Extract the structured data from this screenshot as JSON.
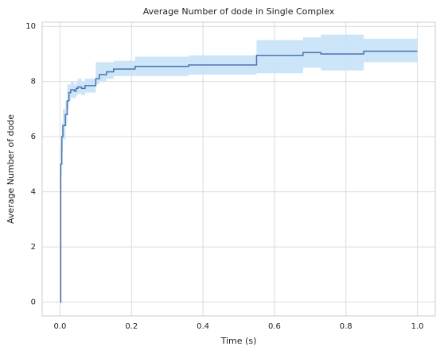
{
  "chart_data": {
    "type": "line",
    "title": "Average Number of dode in Single Complex",
    "x_label": "Time (s)",
    "y_label": "Average Number of dode",
    "x": [
      0,
      0.002,
      0.005,
      0.008,
      0.015,
      0.02,
      0.025,
      0.03,
      0.04,
      0.045,
      0.05,
      0.06,
      0.07,
      0.1,
      0.11,
      0.13,
      0.15,
      0.21,
      0.36,
      0.55,
      0.68,
      0.73,
      0.85,
      1.0
    ],
    "values": [
      0,
      5.0,
      6.0,
      6.4,
      6.8,
      7.3,
      7.6,
      7.7,
      7.65,
      7.75,
      7.8,
      7.75,
      7.85,
      8.1,
      8.25,
      8.35,
      8.45,
      8.55,
      8.6,
      8.95,
      9.05,
      9.0,
      9.1,
      9.1
    ],
    "lower": [
      null,
      4.6,
      5.5,
      5.9,
      6.4,
      7.0,
      7.3,
      7.4,
      7.4,
      7.5,
      7.55,
      7.5,
      7.6,
      7.9,
      8.0,
      8.1,
      8.2,
      8.2,
      8.25,
      8.3,
      8.5,
      8.4,
      8.7,
      null
    ],
    "upper": [
      null,
      5.6,
      6.5,
      7.0,
      7.3,
      7.9,
      7.9,
      8.0,
      7.9,
      8.0,
      8.1,
      8.0,
      8.1,
      8.7,
      8.7,
      8.7,
      8.75,
      8.9,
      8.95,
      9.5,
      9.6,
      9.7,
      9.55,
      null
    ],
    "color": "#4c72b0",
    "band_color": "#c6e2f7",
    "xlim": [
      -0.05,
      1.05
    ],
    "ylim": [
      -0.5,
      10.15
    ],
    "xticks": [
      {
        "value": 0,
        "label": "0.0"
      },
      {
        "value": 0.2,
        "label": "0.2"
      },
      {
        "value": 0.4,
        "label": "0.4"
      },
      {
        "value": 0.6,
        "label": "0.6"
      },
      {
        "value": 0.8,
        "label": "0.8"
      },
      {
        "value": 1.0,
        "label": "1.0"
      }
    ],
    "yticks": [
      0,
      2,
      4,
      6,
      8,
      10
    ],
    "grid": true
  }
}
